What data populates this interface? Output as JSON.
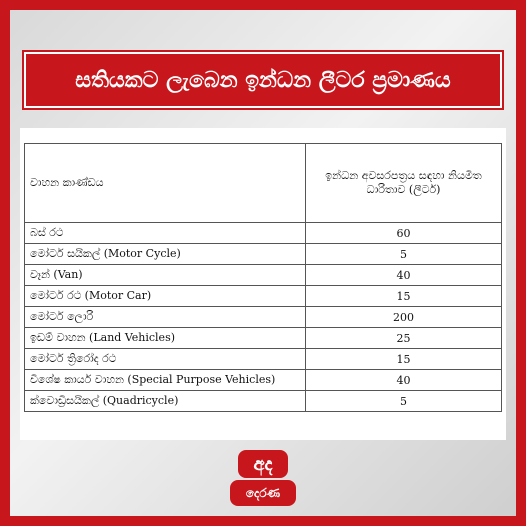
{
  "header": {
    "title": "සතියකට ලැබෙන ඉන්ධන ලීටර ප්‍රමාණය"
  },
  "table": {
    "columns": [
      "වාහන කාණ්ඩය",
      "ඉන්ධන අවසරපත්‍රය සඳහා නියමිත ධාරිතාව (ලීටර්)"
    ],
    "rows": [
      [
        "බස් රථ",
        60
      ],
      [
        "මෝටර් සයිකල් (Motor Cycle)",
        5
      ],
      [
        "වෑන් (Van)",
        40
      ],
      [
        "මෝටර් රථ (Motor Car)",
        15
      ],
      [
        "මෝටර් ලොරි",
        200
      ],
      [
        "ඉඩම් වාහන (Land Vehicles)",
        25
      ],
      [
        "මෝටර් ත්‍රිරෝද රථ",
        15
      ],
      [
        "විශේෂ කාර්ය වාහන (Special Purpose Vehicles)",
        40
      ],
      [
        "ක්වොඩ්‍රිසයිකල් (Quadricycle)",
        5
      ]
    ]
  },
  "logo": {
    "top": "අද",
    "bottom": "දෙරණ"
  }
}
